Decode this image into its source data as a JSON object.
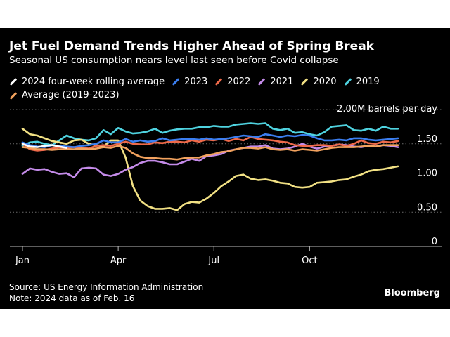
{
  "chart_data": {
    "type": "line",
    "title": "Jet Fuel Demand Trends Higher Ahead of Spring Break",
    "subtitle": "Seasonal US consumption nears level last seen before Covid collapse",
    "ylabel": "2.00M barrels per day",
    "xlabel": "",
    "ylim": [
      0,
      2.0
    ],
    "xlim": [
      1,
      52
    ],
    "yticks": [
      {
        "value": 1.5,
        "label": "1.50"
      },
      {
        "value": 1.0,
        "label": "1.00"
      },
      {
        "value": 0.5,
        "label": "0.50"
      },
      {
        "value": 0,
        "label": "0"
      }
    ],
    "xticks": [
      {
        "week": 1,
        "label": "Jan"
      },
      {
        "week": 14,
        "label": "Apr"
      },
      {
        "week": 27,
        "label": "Jul"
      },
      {
        "week": 40,
        "label": "Oct"
      }
    ],
    "series": [
      {
        "name": "2019",
        "color": "#4fd3e0",
        "values": [
          1.47,
          1.52,
          1.53,
          1.5,
          1.48,
          1.55,
          1.62,
          1.58,
          1.56,
          1.55,
          1.58,
          1.7,
          1.64,
          1.73,
          1.68,
          1.65,
          1.66,
          1.68,
          1.72,
          1.66,
          1.69,
          1.71,
          1.72,
          1.72,
          1.74,
          1.74,
          1.76,
          1.75,
          1.75,
          1.78,
          1.79,
          1.8,
          1.79,
          1.8,
          1.72,
          1.7,
          1.72,
          1.66,
          1.67,
          1.64,
          1.62,
          1.67,
          1.75,
          1.76,
          1.77,
          1.7,
          1.69,
          1.72,
          1.69,
          1.75,
          1.72,
          1.72
        ]
      },
      {
        "name": "2020",
        "color": "#f2e184",
        "values": [
          1.72,
          1.64,
          1.62,
          1.58,
          1.54,
          1.52,
          1.5,
          1.55,
          1.56,
          1.5,
          1.48,
          1.46,
          1.55,
          1.55,
          1.3,
          0.88,
          0.67,
          0.59,
          0.55,
          0.55,
          0.56,
          0.53,
          0.62,
          0.65,
          0.64,
          0.7,
          0.78,
          0.88,
          0.95,
          1.03,
          1.05,
          0.99,
          0.97,
          0.98,
          0.96,
          0.93,
          0.92,
          0.87,
          0.86,
          0.87,
          0.93,
          0.94,
          0.95,
          0.97,
          0.98,
          1.02,
          1.05,
          1.1,
          1.12,
          1.13,
          1.15,
          1.17
        ]
      },
      {
        "name": "2021",
        "color": "#c48be9",
        "values": [
          1.06,
          1.14,
          1.12,
          1.13,
          1.09,
          1.06,
          1.07,
          1.01,
          1.14,
          1.15,
          1.14,
          1.05,
          1.03,
          1.06,
          1.12,
          1.16,
          1.22,
          1.25,
          1.25,
          1.23,
          1.2,
          1.2,
          1.24,
          1.28,
          1.25,
          1.32,
          1.33,
          1.35,
          1.4,
          1.42,
          1.44,
          1.46,
          1.46,
          1.48,
          1.43,
          1.42,
          1.43,
          1.46,
          1.5,
          1.46,
          1.43,
          1.46,
          1.47,
          1.49,
          1.48,
          1.46,
          1.45,
          1.47,
          1.46,
          1.48,
          1.47,
          1.45
        ]
      },
      {
        "name": "2022",
        "color": "#ef6a4a",
        "values": [
          1.5,
          1.42,
          1.4,
          1.41,
          1.43,
          1.45,
          1.44,
          1.45,
          1.44,
          1.43,
          1.47,
          1.48,
          1.47,
          1.5,
          1.53,
          1.5,
          1.49,
          1.49,
          1.52,
          1.51,
          1.53,
          1.53,
          1.52,
          1.55,
          1.53,
          1.56,
          1.55,
          1.57,
          1.54,
          1.57,
          1.55,
          1.6,
          1.57,
          1.56,
          1.55,
          1.53,
          1.52,
          1.48,
          1.47,
          1.47,
          1.48,
          1.48,
          1.47,
          1.49,
          1.47,
          1.5,
          1.55,
          1.51,
          1.5,
          1.53,
          1.52,
          1.54
        ]
      },
      {
        "name": "2023",
        "color": "#3b7ef0",
        "values": [
          1.52,
          1.48,
          1.46,
          1.45,
          1.48,
          1.47,
          1.46,
          1.45,
          1.47,
          1.48,
          1.5,
          1.55,
          1.52,
          1.52,
          1.57,
          1.53,
          1.55,
          1.53,
          1.54,
          1.58,
          1.55,
          1.56,
          1.57,
          1.57,
          1.56,
          1.58,
          1.56,
          1.57,
          1.58,
          1.6,
          1.62,
          1.61,
          1.6,
          1.64,
          1.62,
          1.6,
          1.62,
          1.61,
          1.63,
          1.62,
          1.58,
          1.55,
          1.55,
          1.56,
          1.55,
          1.58,
          1.58,
          1.56,
          1.55,
          1.56,
          1.57,
          1.58
        ]
      },
      {
        "name": "Average (2019-2023)",
        "color": "#f2a25e",
        "values": [
          1.45,
          1.44,
          1.42,
          1.42,
          1.41,
          1.42,
          1.42,
          1.42,
          1.43,
          1.42,
          1.43,
          1.45,
          1.44,
          1.47,
          1.44,
          1.36,
          1.31,
          1.29,
          1.29,
          1.28,
          1.28,
          1.27,
          1.29,
          1.3,
          1.3,
          1.33,
          1.35,
          1.38,
          1.39,
          1.42,
          1.44,
          1.44,
          1.43,
          1.45,
          1.42,
          1.41,
          1.42,
          1.4,
          1.42,
          1.41,
          1.4,
          1.42,
          1.44,
          1.45,
          1.45,
          1.45,
          1.46,
          1.47,
          1.46,
          1.48,
          1.48,
          1.48
        ]
      },
      {
        "name": "2024 four-week rolling average",
        "color": "#ffffff",
        "values": [
          1.5,
          1.46,
          1.45,
          1.47,
          1.48,
          1.46,
          1.44
        ]
      }
    ],
    "legend_order": [
      "2024 four-week rolling average",
      "2023",
      "2022",
      "2021",
      "2020",
      "2019",
      "Average (2019-2023)"
    ],
    "grid": true,
    "legend": "top-left"
  },
  "footer": {
    "source": "Source: US Energy Information Administration",
    "note": "Note: 2024 data as of Feb. 16",
    "brand": "Bloomberg"
  }
}
